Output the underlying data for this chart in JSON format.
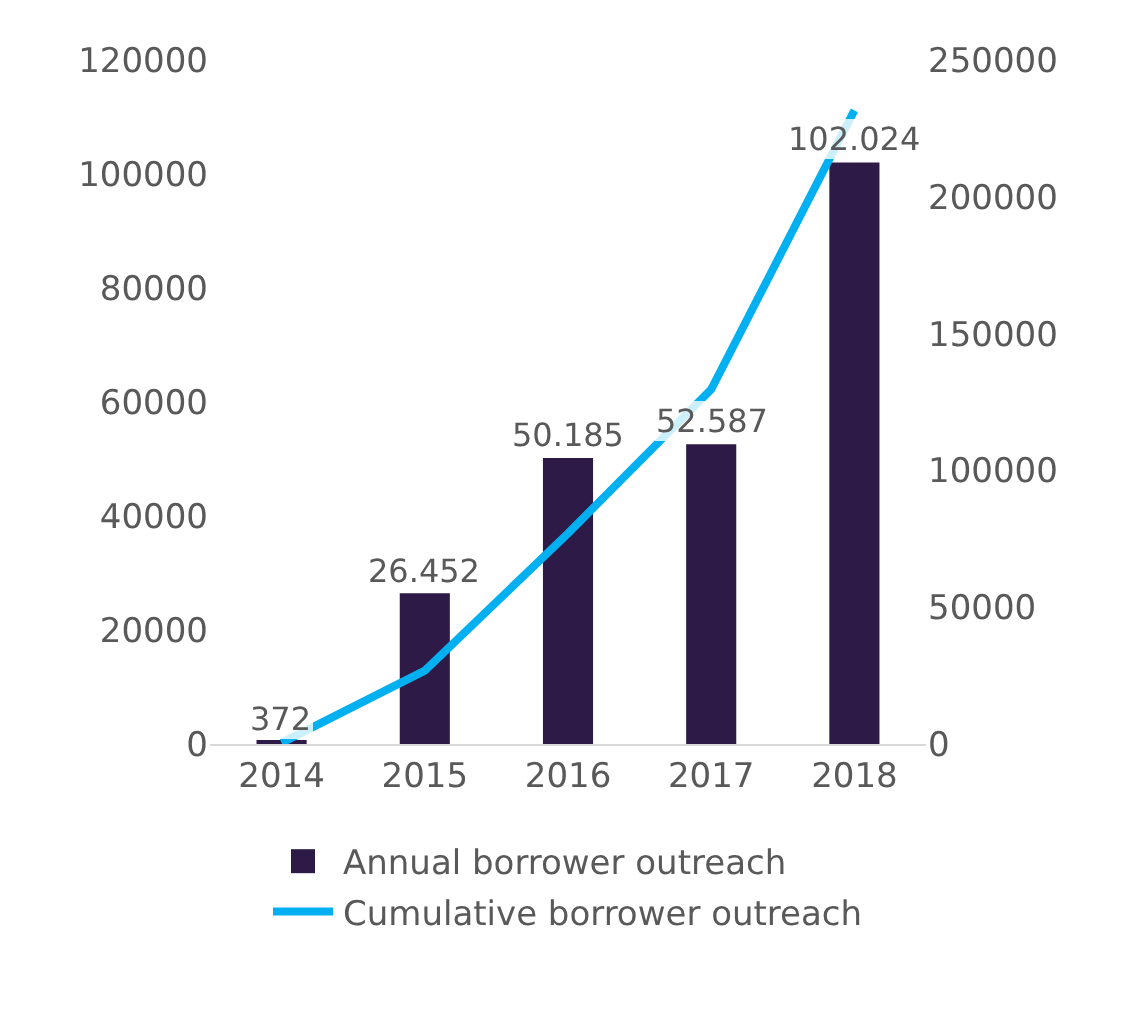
{
  "chart_data": {
    "type": "bar",
    "categories": [
      "2014",
      "2015",
      "2016",
      "2017",
      "2018"
    ],
    "series": [
      {
        "name": "Annual borrower outreach",
        "color": "#2e1a47",
        "values": [
          372,
          26452,
          50185,
          52587,
          102024
        ],
        "value_labels": [
          "372",
          "26.452",
          "50.185",
          "52.587",
          "102.024"
        ]
      },
      {
        "name": "Cumulative borrower outreach",
        "type": "line",
        "axis": "y2",
        "color": "#00b0f0",
        "values": [
          400,
          26800,
          77000,
          129600,
          231600
        ],
        "marker": "none",
        "line_style": "solid"
      }
    ],
    "ylim": [
      0,
      120000
    ],
    "yticks": [
      0,
      20000,
      40000,
      60000,
      80000,
      100000,
      120000
    ],
    "y2lim": [
      0,
      250000
    ],
    "y2ticks": [
      0,
      50000,
      100000,
      150000,
      200000,
      250000
    ],
    "grid": false,
    "legend": "bottom"
  }
}
